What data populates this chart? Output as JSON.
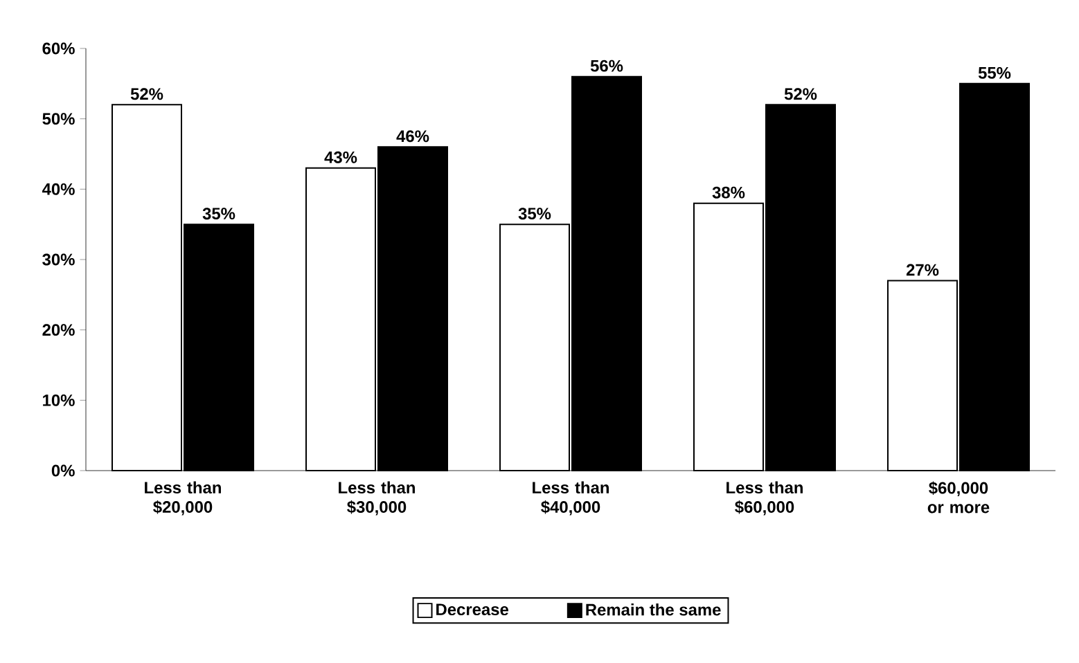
{
  "chart_data": {
    "type": "bar",
    "categories": [
      "Less than $20,000",
      "Less than $30,000",
      "Less than $40,000",
      "Less than $60,000",
      "$60,000 or more"
    ],
    "series": [
      {
        "name": "Decrease",
        "color": "#ffffff",
        "values": [
          52,
          43,
          35,
          38,
          27
        ],
        "value_labels": [
          "52%",
          "43%",
          "35%",
          "38%",
          "27%"
        ]
      },
      {
        "name": "Remain the same",
        "color": "#000000",
        "values": [
          35,
          46,
          56,
          52,
          55
        ],
        "value_labels": [
          "35%",
          "46%",
          "56%",
          "52%",
          "55%"
        ]
      }
    ],
    "ylim": [
      0,
      60
    ],
    "yticks": [
      {
        "value": 0,
        "label": "0%"
      },
      {
        "value": 10,
        "label": "10%"
      },
      {
        "value": 20,
        "label": "20%"
      },
      {
        "value": 30,
        "label": "30%"
      },
      {
        "value": 40,
        "label": "40%"
      },
      {
        "value": 50,
        "label": "50%"
      },
      {
        "value": 60,
        "label": "60%"
      }
    ],
    "legend": "bottom",
    "grid": false
  }
}
